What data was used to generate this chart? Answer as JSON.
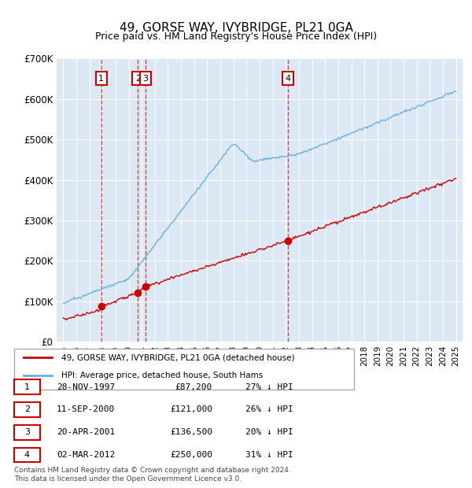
{
  "title": "49, GORSE WAY, IVYBRIDGE, PL21 0GA",
  "subtitle": "Price paid vs. HM Land Registry's House Price Index (HPI)",
  "ylabel": "",
  "background_color": "#dce9f5",
  "plot_bg_color": "#dce9f5",
  "fig_bg_color": "#ffffff",
  "hpi_color": "#6ab0de",
  "price_color": "#cc0000",
  "ylim": [
    0,
    700000
  ],
  "yticks": [
    0,
    100000,
    200000,
    300000,
    400000,
    500000,
    600000,
    700000
  ],
  "ytick_labels": [
    "£0",
    "£100K",
    "£200K",
    "£300K",
    "£400K",
    "£500K",
    "£600K",
    "£700K"
  ],
  "sales": [
    {
      "date_num": 1997.91,
      "price": 87200,
      "label": "1"
    },
    {
      "date_num": 2000.7,
      "price": 121000,
      "label": "2"
    },
    {
      "date_num": 2001.3,
      "price": 136500,
      "label": "3"
    },
    {
      "date_num": 2012.17,
      "price": 250000,
      "label": "4"
    }
  ],
  "legend_house_label": "49, GORSE WAY, IVYBRIDGE, PL21 0GA (detached house)",
  "legend_hpi_label": "HPI: Average price, detached house, South Hams",
  "table": [
    {
      "num": "1",
      "date": "28-NOV-1997",
      "price": "£87,200",
      "pct": "27% ↓ HPI"
    },
    {
      "num": "2",
      "date": "11-SEP-2000",
      "price": "£121,000",
      "pct": "26% ↓ HPI"
    },
    {
      "num": "3",
      "date": "20-APR-2001",
      "price": "£136,500",
      "pct": "20% ↓ HPI"
    },
    {
      "num": "4",
      "date": "02-MAR-2012",
      "price": "£250,000",
      "pct": "31% ↓ HPI"
    }
  ],
  "footer": "Contains HM Land Registry data © Crown copyright and database right 2024.\nThis data is licensed under the Open Government Licence v3.0.",
  "xlim_start": 1994.5,
  "xlim_end": 2025.5
}
